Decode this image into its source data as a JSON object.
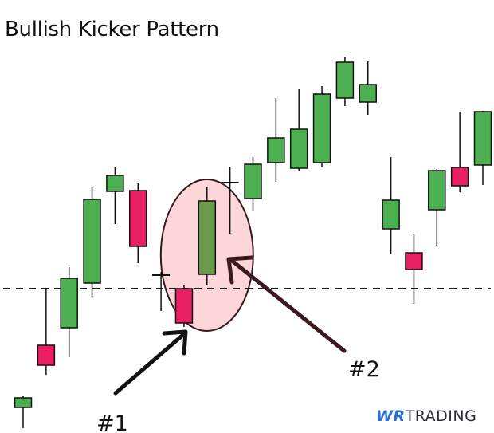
{
  "chart_data": {
    "type": "candlestick",
    "title": "Bullish Kicker Pattern",
    "xlabel": "",
    "ylabel": "",
    "ylim": [
      5.7,
      60
    ],
    "grid": false,
    "colors": {
      "bullish": "#4caf50",
      "bearish": "#e91e63",
      "highlight": "#6a9a4a",
      "ellipse_fill": "#fcd6d9"
    },
    "candles": [
      {
        "open": 8.9,
        "high": 10.3,
        "low": 6.3,
        "close": 10.1
      },
      {
        "open": 16.7,
        "high": 23.8,
        "low": 13.0,
        "close": 14.2
      },
      {
        "open": 18.9,
        "high": 26.5,
        "low": 15.2,
        "close": 25.1
      },
      {
        "open": 24.5,
        "high": 36.5,
        "low": 22.8,
        "close": 35.0
      },
      {
        "open": 36.0,
        "high": 39.1,
        "low": 31.9,
        "close": 38.0
      },
      {
        "open": 36.1,
        "high": 37.0,
        "low": 27.0,
        "close": 29.1
      },
      {
        "open": 25.5,
        "high": 25.9,
        "low": 21.0,
        "close": 25.5
      },
      {
        "open": 23.8,
        "high": 24.2,
        "low": 19.0,
        "close": 19.5
      },
      {
        "open": 25.6,
        "high": 36.6,
        "low": 24.2,
        "close": 34.8,
        "highlight": true
      },
      {
        "open": 37.1,
        "high": 39.1,
        "low": 30.7,
        "close": 37.1
      },
      {
        "open": 35.1,
        "high": 40.3,
        "low": 33.6,
        "close": 39.4
      },
      {
        "open": 39.6,
        "high": 47.7,
        "low": 37.2,
        "close": 42.7
      },
      {
        "open": 38.9,
        "high": 48.8,
        "low": 38.5,
        "close": 43.8
      },
      {
        "open": 39.6,
        "high": 49.2,
        "low": 39.0,
        "close": 48.2
      },
      {
        "open": 47.7,
        "high": 52.9,
        "low": 46.7,
        "close": 52.2
      },
      {
        "open": 47.2,
        "high": 52.3,
        "low": 45.6,
        "close": 49.4
      },
      {
        "open": 31.3,
        "high": 40.3,
        "low": 28.2,
        "close": 34.9
      },
      {
        "open": 28.3,
        "high": 30.6,
        "low": 21.9,
        "close": 26.2
      },
      {
        "open": 33.7,
        "high": 38.8,
        "low": 29.2,
        "close": 38.6
      },
      {
        "open": 39.0,
        "high": 46.0,
        "low": 35.9,
        "close": 36.7
      },
      {
        "open": 39.3,
        "high": 46.1,
        "low": 36.8,
        "close": 46.0
      }
    ],
    "reference_line": {
      "value": 23.8,
      "style": "dashed"
    },
    "annotations": [
      {
        "text": "#1",
        "points_to_candle": 8
      },
      {
        "text": "#2",
        "points_to_candle": 9
      }
    ]
  },
  "logo": {
    "part1": "WR",
    "part2": "TRADING"
  }
}
